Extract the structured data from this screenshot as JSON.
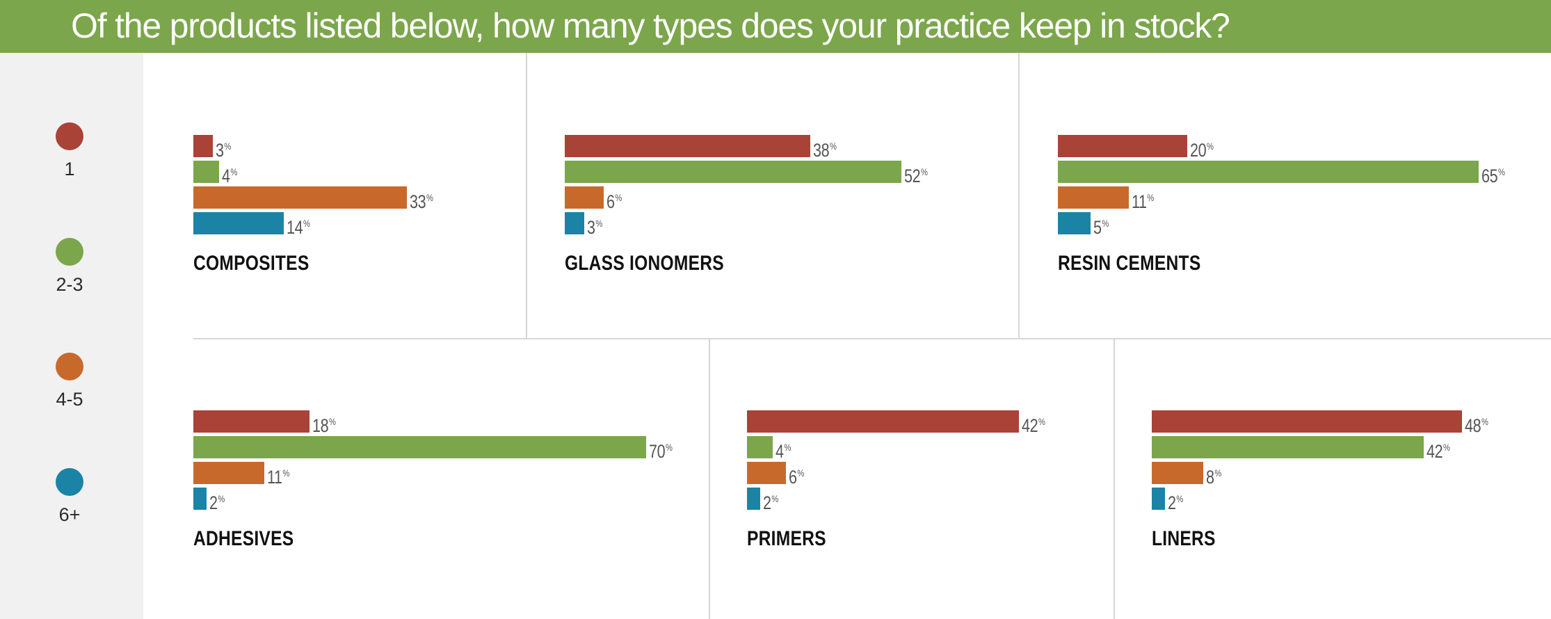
{
  "header": {
    "title": "Of the products listed below, how many types does your practice keep in stock?"
  },
  "colors": {
    "header_bg": "#7ba64b",
    "legend_bg": "#f1f1f1"
  },
  "legend": [
    {
      "label": "1",
      "color": "#a94337"
    },
    {
      "label": "2-3",
      "color": "#7ba64b"
    },
    {
      "label": "4-5",
      "color": "#c8692c"
    },
    {
      "label": "6+",
      "color": "#1b84a6"
    }
  ],
  "chart_data": [
    {
      "type": "bar",
      "title": "COMPOSITES",
      "categories": [
        "1",
        "2-3",
        "4-5",
        "6+"
      ],
      "values": [
        3,
        4,
        33,
        14
      ],
      "unit": "%"
    },
    {
      "type": "bar",
      "title": "GLASS IONOMERS",
      "categories": [
        "1",
        "2-3",
        "4-5",
        "6+"
      ],
      "values": [
        38,
        52,
        6,
        3
      ],
      "unit": "%"
    },
    {
      "type": "bar",
      "title": "RESIN CEMENTS",
      "categories": [
        "1",
        "2-3",
        "4-5",
        "6+"
      ],
      "values": [
        20,
        65,
        11,
        5
      ],
      "unit": "%"
    },
    {
      "type": "bar",
      "title": "ADHESIVES",
      "categories": [
        "1",
        "2-3",
        "4-5",
        "6+"
      ],
      "values": [
        18,
        70,
        11,
        2
      ],
      "unit": "%"
    },
    {
      "type": "bar",
      "title": "PRIMERS",
      "categories": [
        "1",
        "2-3",
        "4-5",
        "6+"
      ],
      "values": [
        42,
        4,
        6,
        2
      ],
      "unit": "%"
    },
    {
      "type": "bar",
      "title": "LINERS",
      "categories": [
        "1",
        "2-3",
        "4-5",
        "6+"
      ],
      "values": [
        48,
        42,
        8,
        2
      ],
      "unit": "%"
    }
  ]
}
